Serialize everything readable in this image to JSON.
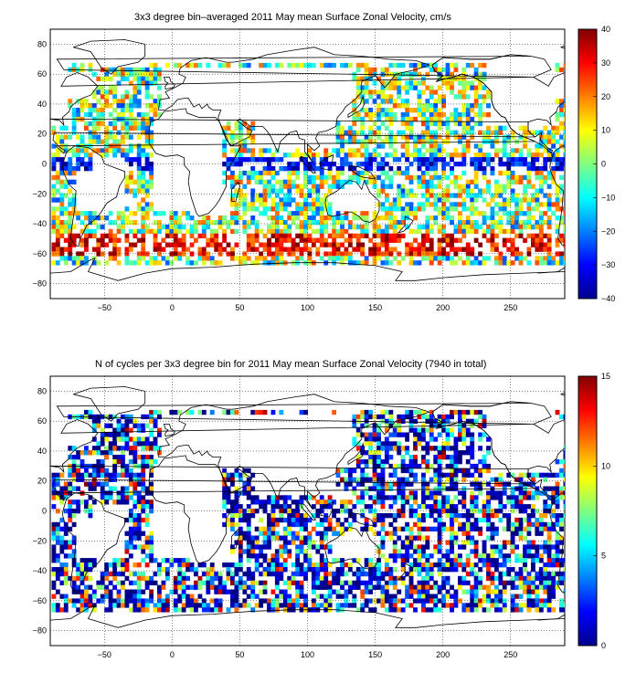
{
  "panels": [
    {
      "title": "3x3 degree bin–averaged 2011 May mean Surface Zonal Velocity, cm/s",
      "colorbar": {
        "ticks": [
          "40",
          "30",
          "20",
          "10",
          "0",
          "−10",
          "−20",
          "−30",
          "−40"
        ],
        "min": -40,
        "max": 40
      }
    },
    {
      "title": "N of cycles per 3x3 degree bin for 2011 May mean Surface Zonal Velocity (7940 in total)",
      "colorbar": {
        "ticks": [
          "15",
          "10",
          "5",
          "0"
        ],
        "min": 0,
        "max": 15
      }
    }
  ],
  "map_axes": {
    "x_ticks": [
      "−50",
      "0",
      "50",
      "100",
      "150",
      "200",
      "250"
    ],
    "y_ticks": [
      "80",
      "60",
      "40",
      "20",
      "0",
      "−20",
      "−40",
      "−60",
      "−80"
    ],
    "x_range": [
      -90,
      290
    ],
    "y_range": [
      -90,
      90
    ],
    "grid": "dotted",
    "colormap": "jet"
  }
}
